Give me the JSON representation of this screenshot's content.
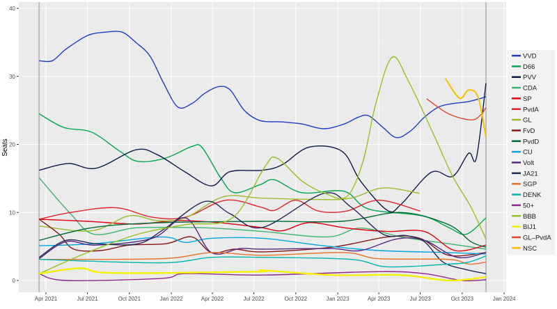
{
  "chart_data": {
    "type": "line",
    "title": "",
    "xlabel": "",
    "ylabel": "Seats",
    "ylim": [
      0,
      40
    ],
    "yticks": [
      0,
      10,
      20,
      30,
      40
    ],
    "xticks": [
      "Apr 2021",
      "Jul 2021",
      "Oct 2021",
      "Jan 2022",
      "Apr 2022",
      "Jul 2022",
      "Oct 2022",
      "Jan 2023",
      "Apr 2023",
      "Jul 2023",
      "Oct 2023",
      "Jan 2024"
    ],
    "xtick_dates": [
      "2021-04-01",
      "2021-07-01",
      "2021-10-01",
      "2022-01-01",
      "2022-04-01",
      "2022-07-01",
      "2022-10-01",
      "2023-01-01",
      "2023-04-01",
      "2023-07-01",
      "2023-10-01",
      "2024-01-01"
    ],
    "xlim": [
      "2021-01-31",
      "2024-01-06"
    ],
    "election_dates": [
      "2021-03-17",
      "2023-11-22"
    ],
    "grid": true,
    "legend": "right",
    "series": [
      {
        "name": "VVD",
        "color": "#1f3bc4",
        "points": [
          [
            "2021-03-17",
            32.3
          ],
          [
            "2021-04-15",
            32.3
          ],
          [
            "2021-05-15",
            34
          ],
          [
            "2021-07-01",
            36
          ],
          [
            "2021-08-10",
            36.5
          ],
          [
            "2021-09-15",
            36.5
          ],
          [
            "2021-10-15",
            35
          ],
          [
            "2021-11-15",
            33
          ],
          [
            "2021-12-15",
            29
          ],
          [
            "2022-01-15",
            25.5
          ],
          [
            "2022-02-15",
            26
          ],
          [
            "2022-03-15",
            27.5
          ],
          [
            "2022-04-15",
            28.5
          ],
          [
            "2022-05-10",
            28
          ],
          [
            "2022-06-10",
            25
          ],
          [
            "2022-07-15",
            23.5
          ],
          [
            "2022-09-01",
            23.3
          ],
          [
            "2022-10-15",
            23
          ],
          [
            "2022-12-01",
            22.3
          ],
          [
            "2023-01-15",
            23
          ],
          [
            "2023-02-15",
            24
          ],
          [
            "2023-03-10",
            24.2
          ],
          [
            "2023-04-10",
            22.5
          ],
          [
            "2023-05-10",
            21
          ],
          [
            "2023-06-10",
            22
          ],
          [
            "2023-07-10",
            24
          ],
          [
            "2023-08-10",
            25.5
          ],
          [
            "2023-09-10",
            26
          ],
          [
            "2023-10-15",
            26.3
          ],
          [
            "2023-11-22",
            27
          ]
        ]
      },
      {
        "name": "D66",
        "color": "#00a650",
        "points": [
          [
            "2021-03-17",
            24.5
          ],
          [
            "2021-05-10",
            22.5
          ],
          [
            "2021-07-10",
            21.8
          ],
          [
            "2021-09-10",
            19
          ],
          [
            "2021-10-20",
            17.5
          ],
          [
            "2021-12-20",
            18
          ],
          [
            "2022-02-15",
            19.7
          ],
          [
            "2022-03-10",
            19.5
          ],
          [
            "2022-04-20",
            15
          ],
          [
            "2022-05-20",
            12.9
          ],
          [
            "2022-07-15",
            14.1
          ],
          [
            "2022-08-15",
            14.8
          ],
          [
            "2022-10-15",
            12.9
          ],
          [
            "2023-01-15",
            13.1
          ],
          [
            "2023-03-10",
            10.5
          ],
          [
            "2023-07-05",
            9.5
          ],
          [
            "2023-09-01",
            7.8
          ],
          [
            "2023-10-10",
            6.8
          ],
          [
            "2023-11-22",
            9.2
          ]
        ]
      },
      {
        "name": "PVV",
        "color": "#0d1b45",
        "points": [
          [
            "2021-03-17",
            16.2
          ],
          [
            "2021-05-20",
            17.2
          ],
          [
            "2021-07-20",
            16.5
          ],
          [
            "2021-10-15",
            19.2
          ],
          [
            "2021-12-01",
            18.5
          ],
          [
            "2022-01-30",
            16
          ],
          [
            "2022-03-30",
            13.9
          ],
          [
            "2022-05-10",
            16
          ],
          [
            "2022-07-20",
            16.2
          ],
          [
            "2022-09-01",
            17
          ],
          [
            "2022-10-30",
            19.6
          ],
          [
            "2023-01-10",
            19
          ],
          [
            "2023-02-20",
            14.6
          ],
          [
            "2023-04-20",
            10.3
          ],
          [
            "2023-05-20",
            11.2
          ],
          [
            "2023-07-25",
            15.9
          ],
          [
            "2023-09-10",
            15.3
          ],
          [
            "2023-10-15",
            18.7
          ],
          [
            "2023-11-01",
            18
          ],
          [
            "2023-11-22",
            29
          ]
        ]
      },
      {
        "name": "CDA",
        "color": "#3cb46e",
        "points": [
          [
            "2021-03-17",
            15.1
          ],
          [
            "2021-05-25",
            9.8
          ],
          [
            "2021-07-15",
            6.8
          ],
          [
            "2021-10-10",
            7.7
          ],
          [
            "2022-01-01",
            7.8
          ],
          [
            "2022-04-01",
            7.7
          ],
          [
            "2022-07-20",
            7.2
          ],
          [
            "2022-12-10",
            6.4
          ],
          [
            "2023-02-20",
            7.7
          ],
          [
            "2023-05-20",
            6.4
          ],
          [
            "2023-09-01",
            5.4
          ],
          [
            "2023-11-22",
            4.6
          ]
        ]
      },
      {
        "name": "SP",
        "color": "#e3000f",
        "points": [
          [
            "2021-03-17",
            9
          ],
          [
            "2021-07-01",
            8.7
          ],
          [
            "2021-10-15",
            8.3
          ],
          [
            "2022-01-15",
            8.8
          ],
          [
            "2022-04-15",
            8.5
          ],
          [
            "2022-07-15",
            7.8
          ],
          [
            "2022-09-01",
            7.3
          ],
          [
            "2022-10-30",
            8.5
          ],
          [
            "2023-01-20",
            7.7
          ],
          [
            "2023-04-20",
            7.2
          ],
          [
            "2023-07-10",
            7.2
          ],
          [
            "2023-09-15",
            4.4
          ],
          [
            "2023-11-22",
            5.2
          ]
        ]
      },
      {
        "name": "PvdA",
        "color": "#e0242c",
        "points": [
          [
            "2021-03-17",
            9
          ],
          [
            "2021-05-25",
            10
          ],
          [
            "2021-09-01",
            10.7
          ],
          [
            "2021-11-20",
            9.3
          ],
          [
            "2022-02-01",
            9.3
          ],
          [
            "2022-04-30",
            11.8
          ],
          [
            "2022-07-15",
            10.8
          ],
          [
            "2022-08-15",
            10.3
          ],
          [
            "2022-10-01",
            11.8
          ],
          [
            "2022-11-20",
            10.2
          ],
          [
            "2023-01-20",
            10.2
          ],
          [
            "2023-04-01",
            11.8
          ],
          [
            "2023-07-01",
            10.2
          ]
        ]
      },
      {
        "name": "GL",
        "color": "#9dbb2f",
        "points": [
          [
            "2021-03-17",
            8
          ],
          [
            "2021-07-10",
            7.3
          ],
          [
            "2021-10-01",
            9.5
          ],
          [
            "2021-12-01",
            8.8
          ],
          [
            "2022-02-01",
            9.2
          ],
          [
            "2022-04-25",
            12.3
          ],
          [
            "2022-07-20",
            12.1
          ],
          [
            "2022-11-20",
            11.9
          ],
          [
            "2023-01-30",
            12.1
          ],
          [
            "2023-04-10",
            13.6
          ],
          [
            "2023-06-30",
            12.8
          ]
        ]
      },
      {
        "name": "FvD",
        "color": "#841818",
        "points": [
          [
            "2021-03-17",
            9
          ],
          [
            "2021-04-30",
            6.8
          ],
          [
            "2021-06-01",
            4.6
          ],
          [
            "2021-07-30",
            4.4
          ],
          [
            "2021-10-01",
            5.2
          ],
          [
            "2021-12-20",
            5.4
          ],
          [
            "2022-02-15",
            6.4
          ],
          [
            "2022-03-30",
            4.1
          ],
          [
            "2022-05-20",
            4.6
          ],
          [
            "2022-07-20",
            4.2
          ],
          [
            "2022-12-20",
            4.9
          ],
          [
            "2023-04-20",
            6.4
          ],
          [
            "2023-06-30",
            6.2
          ],
          [
            "2023-09-01",
            3.7
          ],
          [
            "2023-11-22",
            4.1
          ]
        ]
      },
      {
        "name": "PvdD",
        "color": "#006b35",
        "points": [
          [
            "2021-03-17",
            5.9
          ],
          [
            "2021-07-15",
            7.8
          ],
          [
            "2021-12-10",
            8.5
          ],
          [
            "2022-07-20",
            8.7
          ],
          [
            "2023-01-10",
            8.7
          ],
          [
            "2023-05-20",
            10
          ],
          [
            "2023-09-01",
            8.2
          ],
          [
            "2023-10-20",
            5.7
          ],
          [
            "2023-11-22",
            4.9
          ]
        ]
      },
      {
        "name": "CU",
        "color": "#00a6dc",
        "points": [
          [
            "2021-03-17",
            5.1
          ],
          [
            "2021-07-15",
            5.4
          ],
          [
            "2021-12-10",
            6.4
          ],
          [
            "2022-02-01",
            5.6
          ],
          [
            "2022-03-30",
            6.2
          ],
          [
            "2022-07-20",
            6.2
          ],
          [
            "2022-12-01",
            5.1
          ],
          [
            "2023-04-01",
            4.4
          ],
          [
            "2023-09-01",
            4.1
          ],
          [
            "2023-11-22",
            3.9
          ]
        ]
      },
      {
        "name": "Volt",
        "color": "#562883",
        "points": [
          [
            "2021-03-17",
            3.2
          ],
          [
            "2021-05-15",
            5.7
          ],
          [
            "2021-07-20",
            5.2
          ],
          [
            "2021-11-20",
            6.2
          ],
          [
            "2022-02-01",
            9.2
          ],
          [
            "2022-03-30",
            4.1
          ],
          [
            "2022-06-01",
            4.7
          ],
          [
            "2022-07-20",
            4.6
          ],
          [
            "2022-12-15",
            4.7
          ],
          [
            "2023-02-20",
            4.4
          ],
          [
            "2023-05-10",
            6.1
          ],
          [
            "2023-07-10",
            5.9
          ],
          [
            "2023-09-20",
            3.4
          ],
          [
            "2023-11-22",
            4.1
          ]
        ]
      },
      {
        "name": "JA21",
        "color": "#242b57",
        "points": [
          [
            "2021-03-17",
            3.4
          ],
          [
            "2021-05-15",
            5.9
          ],
          [
            "2021-07-20",
            5.4
          ],
          [
            "2021-10-20",
            5.4
          ],
          [
            "2021-12-15",
            7.5
          ],
          [
            "2022-03-15",
            11.6
          ],
          [
            "2022-05-10",
            9.8
          ],
          [
            "2022-07-20",
            7.8
          ],
          [
            "2022-12-01",
            12.8
          ],
          [
            "2023-01-30",
            10.8
          ],
          [
            "2023-04-10",
            6.8
          ],
          [
            "2023-05-30",
            6.6
          ],
          [
            "2023-07-10",
            5.7
          ],
          [
            "2023-08-20",
            2.7
          ],
          [
            "2023-10-10",
            1.6
          ],
          [
            "2023-11-22",
            1
          ]
        ]
      },
      {
        "name": "SGP",
        "color": "#e8712c",
        "points": [
          [
            "2021-03-17",
            3.1
          ],
          [
            "2021-12-10",
            3.2
          ],
          [
            "2022-03-30",
            4.1
          ],
          [
            "2022-07-20",
            3.7
          ],
          [
            "2023-01-15",
            4.1
          ],
          [
            "2023-04-01",
            3.2
          ],
          [
            "2023-09-01",
            3.1
          ],
          [
            "2023-10-15",
            2.4
          ],
          [
            "2023-11-22",
            2.7
          ]
        ]
      },
      {
        "name": "DENK",
        "color": "#00b5ad",
        "points": [
          [
            "2021-03-17",
            3.1
          ],
          [
            "2021-12-10",
            2.6
          ],
          [
            "2022-03-30",
            3.4
          ],
          [
            "2022-07-20",
            3.4
          ],
          [
            "2023-01-30",
            3.1
          ],
          [
            "2023-04-20",
            2
          ],
          [
            "2023-09-01",
            2.4
          ],
          [
            "2023-10-15",
            2.7
          ],
          [
            "2023-11-22",
            3.6
          ]
        ]
      },
      {
        "name": "50+",
        "color": "#92278f",
        "points": [
          [
            "2021-03-17",
            1
          ],
          [
            "2021-05-15",
            0
          ],
          [
            "2021-12-10",
            0.3
          ],
          [
            "2022-02-01",
            1
          ],
          [
            "2022-07-20",
            0.8
          ],
          [
            "2023-04-01",
            1.3
          ],
          [
            "2023-07-10",
            1
          ],
          [
            "2023-09-30",
            0
          ],
          [
            "2023-11-22",
            0.1
          ]
        ]
      },
      {
        "name": "BBB",
        "color": "#95c11f",
        "points": [
          [
            "2021-03-17",
            1
          ],
          [
            "2021-07-01",
            4.1
          ],
          [
            "2021-10-20",
            6.8
          ],
          [
            "2022-02-01",
            8.2
          ],
          [
            "2022-05-15",
            9.2
          ],
          [
            "2022-07-25",
            16.7
          ],
          [
            "2022-08-20",
            18
          ],
          [
            "2022-10-15",
            14.6
          ],
          [
            "2022-12-01",
            12.9
          ],
          [
            "2023-01-20",
            12.3
          ],
          [
            "2023-02-25",
            17.4
          ],
          [
            "2023-03-25",
            25.9
          ],
          [
            "2023-04-30",
            32.8
          ],
          [
            "2023-06-05",
            29.3
          ],
          [
            "2023-07-30",
            21.5
          ],
          [
            "2023-09-10",
            15.3
          ],
          [
            "2023-10-20",
            10.8
          ],
          [
            "2023-11-22",
            6.1
          ]
        ]
      },
      {
        "name": "BIJ1",
        "color": "#f5f000",
        "points": [
          [
            "2021-03-17",
            1
          ],
          [
            "2021-06-15",
            1.8
          ],
          [
            "2021-08-25",
            1.1
          ],
          [
            "2022-07-20",
            1.5
          ],
          [
            "2022-07-10",
            1.3
          ],
          [
            "2022-12-20",
            0.8
          ],
          [
            "2023-05-20",
            0.8
          ],
          [
            "2023-09-01",
            0
          ],
          [
            "2023-11-22",
            0.5
          ]
        ]
      },
      {
        "name": "GL–PvdA",
        "color": "#e2462e",
        "points": [
          [
            "2023-07-15",
            26.7
          ],
          [
            "2023-09-01",
            24.5
          ],
          [
            "2023-10-20",
            23.6
          ],
          [
            "2023-11-10",
            24.3
          ],
          [
            "2023-11-22",
            25.4
          ]
        ]
      },
      {
        "name": "NSC",
        "color": "#f5c100",
        "points": [
          [
            "2023-08-25",
            29.7
          ],
          [
            "2023-09-25",
            26.8
          ],
          [
            "2023-10-15",
            28
          ],
          [
            "2023-11-05",
            26.9
          ],
          [
            "2023-11-22",
            21.1
          ]
        ]
      }
    ]
  }
}
